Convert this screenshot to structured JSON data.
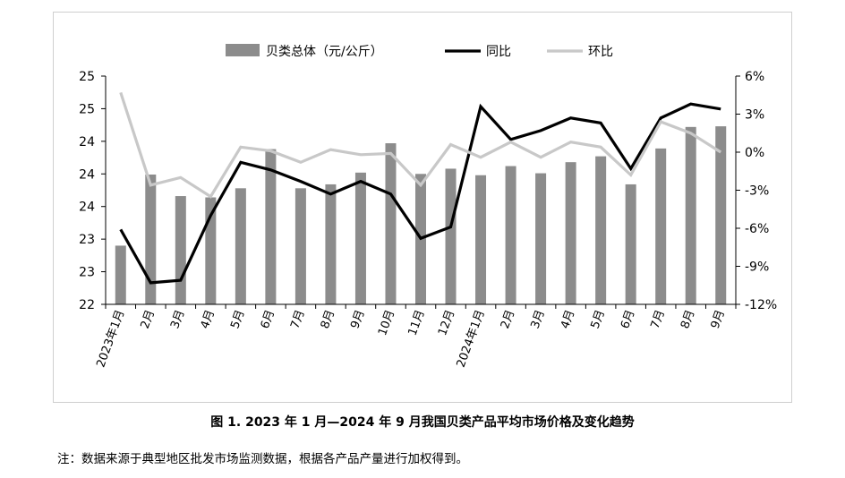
{
  "chart_data": {
    "type": "bar+line",
    "categories": [
      "2023年1月",
      "2月",
      "3月",
      "4月",
      "5月",
      "6月",
      "7月",
      "8月",
      "9月",
      "10月",
      "11月",
      "12月",
      "2024年1月",
      "2月",
      "3月",
      "4月",
      "5月",
      "6月",
      "7月",
      "8月",
      "9月"
    ],
    "left_axis": {
      "ylim": [
        22,
        25.5
      ],
      "tick_values": [
        22,
        22.5,
        23,
        23.5,
        24,
        24.5,
        25,
        25.5
      ],
      "tick_labels": [
        "22",
        "23",
        "23",
        "24",
        "24",
        "24",
        "25",
        "25"
      ]
    },
    "right_axis": {
      "ylim": [
        -12,
        6
      ],
      "tick_values": [
        -12,
        -9,
        -6,
        -3,
        0,
        3,
        6
      ],
      "tick_labels": [
        "-12%",
        "-9%",
        "-6%",
        "-3%",
        "0%",
        "3%",
        "6%"
      ]
    },
    "series": [
      {
        "name": "贝类总体（元/公斤）",
        "type": "bar",
        "axis": "left",
        "color": "#8c8c8c",
        "values": [
          22.9,
          23.99,
          23.66,
          23.64,
          23.78,
          24.38,
          23.78,
          23.84,
          24.02,
          24.47,
          24.0,
          24.08,
          23.98,
          24.12,
          24.01,
          24.18,
          24.27,
          23.84,
          24.39,
          24.72,
          24.73
        ]
      },
      {
        "name": "同比",
        "type": "line",
        "axis": "right",
        "color": "#000000",
        "values": [
          -6.1,
          -10.3,
          -10.1,
          -5.0,
          -0.8,
          -1.4,
          -2.3,
          -3.3,
          -2.3,
          -3.3,
          -6.8,
          -5.9,
          3.6,
          1.0,
          1.7,
          2.7,
          2.3,
          -1.3,
          2.7,
          3.8,
          3.4
        ]
      },
      {
        "name": "环比",
        "type": "line",
        "axis": "right",
        "color": "#c8c8c8",
        "values": [
          4.7,
          -2.6,
          -2.0,
          -3.5,
          0.4,
          0.1,
          -0.8,
          0.2,
          -0.2,
          -0.1,
          -2.6,
          0.6,
          -0.4,
          0.8,
          -0.4,
          0.8,
          0.4,
          -1.8,
          2.4,
          1.5,
          0.0
        ]
      }
    ],
    "legend_position": "top-center",
    "grid": false
  },
  "caption": "图 1.  2023 年 1 月—2024 年 9 月我国贝类产品平均市场价格及变化趋势",
  "note": "注：数据来源于典型地区批发市场监测数据，根据各产品产量进行加权得到。"
}
